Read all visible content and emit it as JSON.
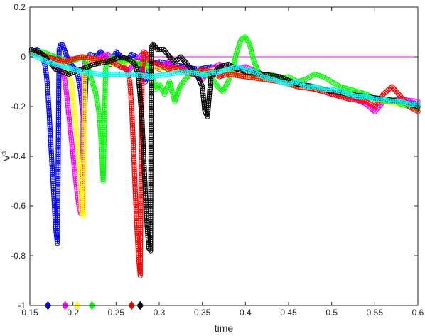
{
  "chart_data": {
    "type": "line",
    "title": "",
    "xlabel": "time",
    "ylabel": "V",
    "ylabel_superscript": "3",
    "xlim": [
      0.15,
      0.6
    ],
    "ylim": [
      -1,
      0.2
    ],
    "xticks": [
      "0.15",
      "0.2",
      "0.25",
      "0.3",
      "0.35",
      "0.4",
      "0.45",
      "0.5",
      "0.55",
      "0.6"
    ],
    "yticks": [
      "0.2",
      "0",
      "-0.2",
      "-0.4",
      "-0.6",
      "-0.8",
      "-1"
    ],
    "grid": false,
    "legend": "none",
    "reference_line": {
      "y": 0,
      "color": "#ff00ff"
    },
    "series": [
      {
        "color": "#0000ff",
        "marker": "circle",
        "x": [
          0.152,
          0.158,
          0.164,
          0.168,
          0.17,
          0.172,
          0.174,
          0.176,
          0.178,
          0.18,
          0.182,
          0.184,
          0.186,
          0.188,
          0.19,
          0.192,
          0.194,
          0.196,
          0.198,
          0.2,
          0.203,
          0.206,
          0.209,
          0.211,
          0.213,
          0.216,
          0.22,
          0.226,
          0.232,
          0.238,
          0.244,
          0.25,
          0.256,
          0.262,
          0.268,
          0.274,
          0.278,
          0.281,
          0.284,
          0.29,
          0.3,
          0.315,
          0.33,
          0.345,
          0.36,
          0.38,
          0.4,
          0.42,
          0.44,
          0.46,
          0.48,
          0.5,
          0.52,
          0.54,
          0.56,
          0.58,
          0.6
        ],
        "y": [
          0.02,
          0.03,
          0.01,
          -0.04,
          -0.1,
          -0.2,
          -0.33,
          -0.45,
          -0.57,
          -0.69,
          -0.75,
          0.03,
          0.05,
          0.05,
          0.03,
          0.01,
          -0.01,
          -0.03,
          -0.03,
          -0.04,
          -0.05,
          -0.08,
          -0.14,
          -0.22,
          -0.26,
          -0.02,
          0.01,
          0.0,
          0.02,
          0.0,
          -0.03,
          0.02,
          0.0,
          -0.02,
          0.01,
          0.0,
          -0.03,
          -0.08,
          -0.1,
          -0.03,
          -0.02,
          -0.03,
          -0.04,
          -0.05,
          -0.04,
          -0.06,
          -0.05,
          -0.07,
          -0.09,
          -0.11,
          -0.12,
          -0.14,
          -0.15,
          -0.16,
          -0.18,
          -0.18,
          -0.19
        ]
      },
      {
        "color": "#ff00ff",
        "marker": "circle",
        "x": [
          0.152,
          0.16,
          0.17,
          0.176,
          0.18,
          0.186,
          0.19,
          0.193,
          0.196,
          0.199,
          0.202,
          0.205,
          0.207,
          0.209,
          0.211,
          0.212,
          0.214,
          0.218,
          0.224,
          0.232,
          0.24,
          0.248,
          0.256,
          0.264,
          0.272,
          0.28,
          0.29,
          0.3,
          0.31,
          0.32,
          0.33,
          0.34,
          0.35,
          0.36,
          0.37,
          0.38,
          0.39,
          0.4,
          0.42,
          0.44,
          0.46,
          0.48,
          0.5,
          0.52,
          0.54,
          0.55,
          0.56,
          0.58,
          0.6
        ],
        "y": [
          0.01,
          0.02,
          0.0,
          -0.02,
          -0.05,
          -0.04,
          -0.08,
          -0.16,
          -0.26,
          -0.36,
          -0.46,
          -0.55,
          -0.6,
          -0.63,
          -0.62,
          -0.1,
          -0.02,
          0.0,
          -0.02,
          0.0,
          0.01,
          -0.01,
          -0.03,
          -0.06,
          -0.02,
          0.01,
          -0.03,
          -0.05,
          -0.02,
          -0.06,
          -0.04,
          -0.07,
          -0.09,
          -0.05,
          -0.03,
          -0.06,
          -0.05,
          -0.04,
          -0.07,
          -0.1,
          -0.11,
          -0.13,
          -0.15,
          -0.16,
          -0.19,
          -0.22,
          -0.18,
          -0.17,
          -0.18
        ]
      },
      {
        "color": "#ffff00",
        "marker": "circle",
        "x": [
          0.152,
          0.17,
          0.19,
          0.198,
          0.204,
          0.208,
          0.21,
          0.212,
          0.214,
          0.22,
          0.23,
          0.25,
          0.27,
          0.29,
          0.31,
          0.33,
          0.35,
          0.37,
          0.39,
          0.41,
          0.44,
          0.47,
          0.5,
          0.53,
          0.56,
          0.6
        ],
        "y": [
          0.01,
          0.0,
          -0.03,
          -0.1,
          -0.3,
          -0.5,
          -0.62,
          -0.64,
          -0.05,
          0.0,
          -0.02,
          -0.03,
          -0.02,
          -0.04,
          -0.05,
          -0.06,
          -0.06,
          -0.05,
          -0.07,
          -0.08,
          -0.1,
          -0.12,
          -0.14,
          -0.16,
          -0.18,
          -0.2
        ]
      },
      {
        "color": "#00ff00",
        "marker": "circle",
        "x": [
          0.152,
          0.165,
          0.18,
          0.195,
          0.205,
          0.212,
          0.218,
          0.222,
          0.226,
          0.23,
          0.233,
          0.235,
          0.238,
          0.245,
          0.255,
          0.265,
          0.275,
          0.285,
          0.292,
          0.296,
          0.3,
          0.306,
          0.312,
          0.318,
          0.324,
          0.33,
          0.34,
          0.35,
          0.36,
          0.368,
          0.374,
          0.38,
          0.385,
          0.39,
          0.395,
          0.4,
          0.405,
          0.41,
          0.415,
          0.42,
          0.43,
          0.44,
          0.45,
          0.46,
          0.47,
          0.48,
          0.49,
          0.5,
          0.51,
          0.52,
          0.53,
          0.54,
          0.55,
          0.56,
          0.57,
          0.58,
          0.59,
          0.6
        ],
        "y": [
          0.02,
          0.02,
          0.0,
          -0.02,
          -0.01,
          0.0,
          -0.05,
          -0.1,
          -0.14,
          -0.22,
          -0.35,
          -0.5,
          -0.04,
          0.0,
          -0.02,
          -0.01,
          -0.03,
          -0.02,
          -0.08,
          -0.13,
          -0.11,
          -0.15,
          -0.1,
          -0.18,
          -0.12,
          -0.09,
          -0.06,
          -0.07,
          -0.08,
          -0.12,
          -0.14,
          -0.1,
          -0.05,
          0.02,
          0.07,
          0.08,
          0.05,
          -0.02,
          -0.06,
          -0.08,
          -0.07,
          -0.09,
          -0.08,
          -0.1,
          -0.09,
          -0.07,
          -0.08,
          -0.1,
          -0.12,
          -0.13,
          -0.14,
          -0.15,
          -0.17,
          -0.18,
          -0.17,
          -0.19,
          -0.2,
          -0.21
        ]
      },
      {
        "color": "#ff0000",
        "marker": "circle",
        "x": [
          0.152,
          0.17,
          0.19,
          0.21,
          0.23,
          0.245,
          0.255,
          0.262,
          0.266,
          0.268,
          0.27,
          0.272,
          0.274,
          0.276,
          0.278,
          0.28,
          0.282,
          0.286,
          0.29,
          0.3,
          0.31,
          0.32,
          0.33,
          0.34,
          0.35,
          0.36,
          0.37,
          0.38,
          0.4,
          0.42,
          0.44,
          0.46,
          0.48,
          0.5,
          0.52,
          0.54,
          0.55,
          0.56,
          0.57,
          0.58,
          0.59,
          0.6
        ],
        "y": [
          0.02,
          0.0,
          -0.02,
          0.0,
          -0.01,
          -0.02,
          -0.04,
          -0.05,
          -0.1,
          -0.2,
          -0.35,
          -0.52,
          -0.68,
          -0.8,
          -0.88,
          -0.1,
          0.02,
          0.01,
          -0.02,
          -0.03,
          -0.05,
          -0.04,
          -0.06,
          -0.07,
          -0.05,
          -0.06,
          -0.08,
          -0.07,
          -0.08,
          -0.09,
          -0.1,
          -0.12,
          -0.13,
          -0.15,
          -0.17,
          -0.18,
          -0.2,
          -0.15,
          -0.12,
          -0.16,
          -0.2,
          -0.22
        ]
      },
      {
        "color": "#000000",
        "marker": "circle",
        "x": [
          0.152,
          0.165,
          0.18,
          0.195,
          0.21,
          0.225,
          0.24,
          0.255,
          0.265,
          0.272,
          0.276,
          0.28,
          0.282,
          0.284,
          0.286,
          0.288,
          0.29,
          0.291,
          0.293,
          0.298,
          0.305,
          0.312,
          0.318,
          0.325,
          0.335,
          0.345,
          0.35,
          0.353,
          0.356,
          0.36,
          0.37,
          0.38,
          0.39,
          0.4,
          0.42,
          0.44,
          0.46,
          0.48,
          0.5,
          0.52,
          0.54,
          0.56,
          0.58,
          0.6
        ],
        "y": [
          0.03,
          0.01,
          -0.05,
          -0.07,
          -0.05,
          -0.03,
          -0.02,
          0.0,
          -0.01,
          -0.03,
          -0.08,
          -0.25,
          -0.4,
          -0.55,
          -0.68,
          -0.77,
          -0.78,
          0.04,
          0.05,
          0.03,
          0.03,
          0.0,
          -0.02,
          0.0,
          -0.04,
          -0.08,
          -0.12,
          -0.22,
          -0.24,
          -0.08,
          -0.04,
          -0.03,
          -0.05,
          -0.06,
          -0.07,
          -0.08,
          -0.11,
          -0.12,
          -0.14,
          -0.15,
          -0.16,
          -0.17,
          -0.18,
          -0.2
        ]
      },
      {
        "color": "#00ffff",
        "marker": "circle",
        "x": [
          0.152,
          0.17,
          0.19,
          0.21,
          0.23,
          0.25,
          0.27,
          0.29,
          0.31,
          0.33,
          0.35,
          0.37,
          0.38,
          0.39,
          0.4,
          0.41,
          0.42,
          0.43,
          0.44,
          0.45,
          0.46,
          0.47,
          0.48,
          0.49,
          0.5,
          0.51,
          0.52,
          0.53,
          0.54,
          0.55,
          0.56,
          0.57,
          0.58,
          0.59,
          0.6
        ],
        "y": [
          0.01,
          -0.02,
          -0.04,
          -0.06,
          -0.07,
          -0.07,
          -0.07,
          -0.08,
          -0.07,
          -0.06,
          -0.07,
          -0.06,
          -0.05,
          -0.04,
          -0.05,
          -0.06,
          -0.08,
          -0.09,
          -0.1,
          -0.11,
          -0.1,
          -0.12,
          -0.12,
          -0.13,
          -0.13,
          -0.14,
          -0.15,
          -0.16,
          -0.16,
          -0.17,
          -0.17,
          -0.18,
          -0.18,
          -0.19,
          -0.19
        ]
      }
    ],
    "event_markers": [
      {
        "x": 0.171,
        "y": -1,
        "color": "#0000ff",
        "shape": "diamond"
      },
      {
        "x": 0.191,
        "y": -1,
        "color": "#ff00ff",
        "shape": "diamond"
      },
      {
        "x": 0.205,
        "y": -1,
        "color": "#ffff00",
        "shape": "diamond"
      },
      {
        "x": 0.222,
        "y": -1,
        "color": "#00ff00",
        "shape": "diamond"
      },
      {
        "x": 0.268,
        "y": -1,
        "color": "#ff0000",
        "shape": "diamond"
      },
      {
        "x": 0.278,
        "y": -1,
        "color": "#000000",
        "shape": "diamond"
      }
    ]
  }
}
